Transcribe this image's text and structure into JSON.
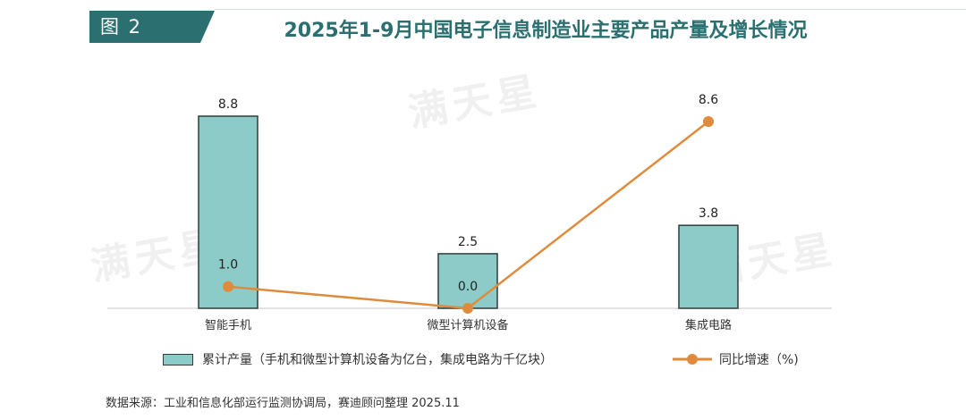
{
  "figure_label": "图 2",
  "title": "2025年1-9月中国电子信息制造业主要产品产量及增长情况",
  "watermark": "满天星",
  "legend": {
    "bar_label": "累计产量（手机和微型计算机设备为亿台，集成电路为千亿块）",
    "line_label": "同比增速（%)"
  },
  "source": "数据来源：工业和信息化部运行监测协调局，赛迪顾问整理 2025.11",
  "colors": {
    "accent": "#2b6f70",
    "bar_fill": "#8ccbc7",
    "bar_stroke": "#2f3d3d",
    "line": "#e08b3c"
  },
  "chart_data": {
    "type": "bar",
    "title": "2025年1-9月中国电子信息制造业主要产品产量及增长情况",
    "categories": [
      "智能手机",
      "微型计算机设备",
      "集成电路"
    ],
    "series": [
      {
        "name": "累计产量（手机和微型计算机设备为亿台，集成电路为千亿块）",
        "type": "bar",
        "values": [
          8.8,
          2.5,
          3.8
        ],
        "labels": [
          "8.8",
          "2.5",
          "3.8"
        ]
      },
      {
        "name": "同比增速（%)",
        "type": "line",
        "values": [
          1.0,
          0.0,
          8.6
        ],
        "labels": [
          "1.0",
          "0.0",
          "8.6"
        ]
      }
    ],
    "xlabel": "",
    "ylabel": "",
    "legend_position": "bottom"
  }
}
